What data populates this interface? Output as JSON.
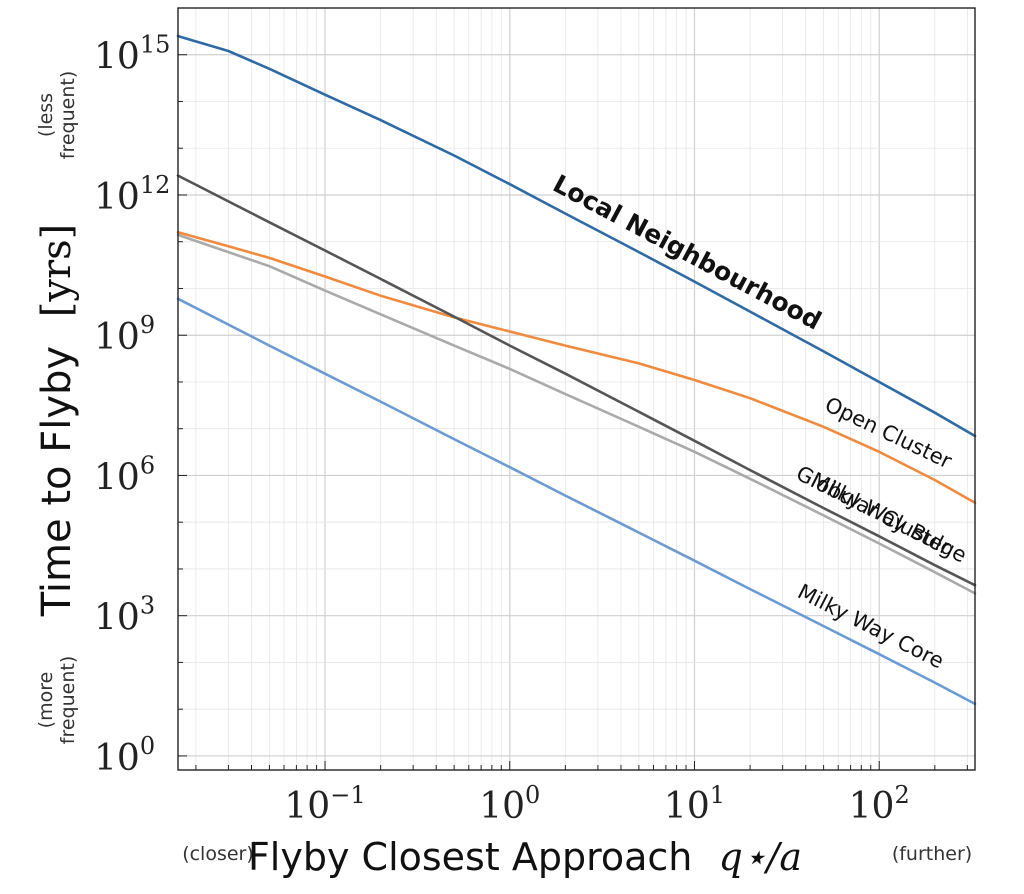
{
  "chart_data": {
    "type": "line",
    "xscale": "log",
    "yscale": "log",
    "xlim": [
      0.016,
      330
    ],
    "ylim": [
      0.5,
      1e+16
    ],
    "grid": true,
    "x_ticks": [
      {
        "value": 0.1,
        "base": "10",
        "exp": "−1"
      },
      {
        "value": 1,
        "base": "10",
        "exp": "0"
      },
      {
        "value": 10,
        "base": "10",
        "exp": "1"
      },
      {
        "value": 100,
        "base": "10",
        "exp": "2"
      }
    ],
    "y_ticks": [
      {
        "value": 1,
        "base": "10",
        "exp": "0"
      },
      {
        "value": 1000,
        "base": "10",
        "exp": "3"
      },
      {
        "value": 1000000,
        "base": "10",
        "exp": "6"
      },
      {
        "value": 1000000000,
        "base": "10",
        "exp": "9"
      },
      {
        "value": 1000000000000,
        "base": "10",
        "exp": "12"
      },
      {
        "value": 1000000000000000,
        "base": "10",
        "exp": "15"
      }
    ],
    "xlabel": {
      "text": "Flyby Closest Approach",
      "math": "q⋆/a"
    },
    "ylabel": {
      "text": "Time to Flyby",
      "unit": "[yrs]"
    },
    "x_hints": {
      "left": "(closer)",
      "right": "(further)"
    },
    "y_hints": {
      "top": [
        "(less",
        "frequent)"
      ],
      "bottom": [
        "(more",
        "frequent)"
      ]
    },
    "series": [
      {
        "name": "Local Neighbourhood",
        "color": "#2e6aa3",
        "label_bold": true,
        "x": [
          0.016,
          0.03,
          0.05,
          0.1,
          0.2,
          0.5,
          1,
          2,
          5,
          10,
          20,
          50,
          100,
          200,
          330
        ],
        "y": [
          2500000000000000.0,
          1200000000000000.0,
          500000000000000.0,
          140000000000000.0,
          40000000000000.0,
          7000000000000.0,
          1700000000000.0,
          400000000000.0,
          60000000000.0,
          14000000000.0,
          3200000000.0,
          450000000.0,
          100000000.0,
          22000000.0,
          7000000.0
        ]
      },
      {
        "name": "Open Cluster",
        "color": "#f08a3e",
        "label_bold": false,
        "x": [
          0.016,
          0.03,
          0.05,
          0.1,
          0.2,
          0.5,
          1,
          2,
          5,
          10,
          20,
          50,
          100,
          200,
          330
        ],
        "y": [
          160000000000.0,
          80000000000.0,
          45000000000.0,
          18000000000.0,
          7000000000.0,
          2400000000.0,
          1200000000.0,
          600000000.0,
          250000000.0,
          110000000.0,
          45000000.0,
          11000000.0,
          3200000.0,
          800000.0,
          260000.0
        ]
      },
      {
        "name": "Milky Way Bulge",
        "color": "#555555",
        "label_bold": false,
        "x": [
          0.016,
          0.05,
          0.1,
          0.2,
          0.5,
          1,
          2,
          5,
          10,
          20,
          50,
          100,
          200,
          330
        ],
        "y": [
          2600000000000.0,
          260000000000.0,
          65000000000.0,
          16000000000.0,
          2500000000.0,
          600000000.0,
          150000000.0,
          23000000.0,
          5500000.0,
          1300000.0,
          200000.0,
          50000.0,
          12000.0,
          4500.0
        ]
      },
      {
        "name": "Globular Cluster",
        "color": "#aaaaaa",
        "label_bold": false,
        "x": [
          0.016,
          0.03,
          0.05,
          0.1,
          0.2,
          0.5,
          1,
          2,
          5,
          10,
          20,
          50,
          100,
          200,
          330
        ],
        "y": [
          140000000000.0,
          60000000000.0,
          30000000000.0,
          9000000000.0,
          2800000000.0,
          600000000.0,
          190000000.0,
          55000000.0,
          11000000.0,
          3200000.0,
          850000.0,
          140000.0,
          35000.0,
          8500.0,
          3000.0
        ]
      },
      {
        "name": "Milky Way Core",
        "color": "#6b9bd2",
        "label_bold": false,
        "x": [
          0.016,
          0.05,
          0.1,
          0.2,
          0.5,
          1,
          2,
          5,
          10,
          20,
          50,
          100,
          200,
          330
        ],
        "y": [
          6000000000.0,
          600000000.0,
          150000000.0,
          38000000.0,
          6000000.0,
          1500000.0,
          370000.0,
          60000.0,
          15000.0,
          3700.0,
          600,
          150,
          37,
          13
        ]
      }
    ]
  }
}
